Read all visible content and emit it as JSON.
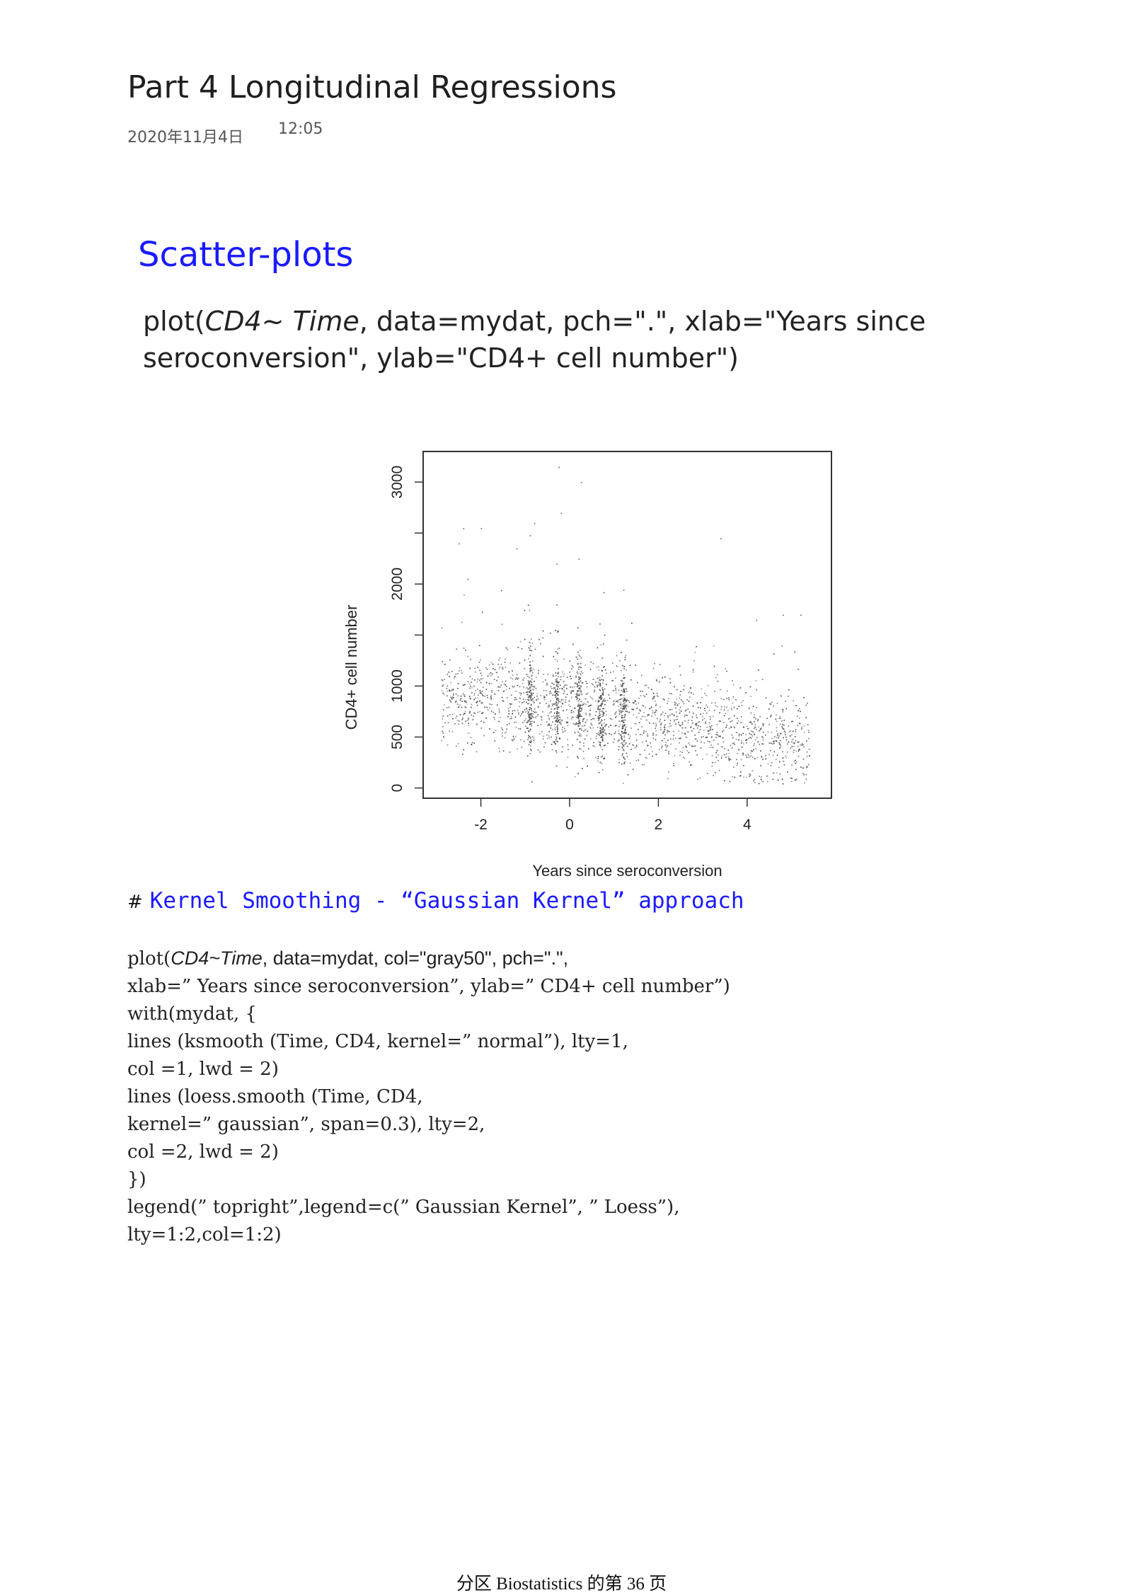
{
  "page": {
    "title": "Part 4 Longitudinal Regressions",
    "date": "2020年11月4日",
    "time": "12:05"
  },
  "slide": {
    "heading": "Scatter-plots",
    "code_line1_prefix": "plot(",
    "code_line1_var1": "CD4",
    "code_line1_tilde": "~ ",
    "code_line1_var2": "Time",
    "code_line1_rest": ", data=mydat, pch=\".\", xlab=\"Years since",
    "code_line2": "seroconversion\", ylab=\"CD4+ cell number\")"
  },
  "chart_data": {
    "type": "scatter",
    "xlabel": "Years since seroconversion",
    "ylabel": "CD4+ cell number",
    "xlim": [
      -3.3,
      5.9
    ],
    "ylim": [
      -100,
      3300
    ],
    "x_ticks": [
      "-2",
      "0",
      "2",
      "4"
    ],
    "y_ticks": [
      "0",
      "500",
      "1000",
      "2000",
      "3000"
    ],
    "y_tick_values": [
      0,
      500,
      1000,
      1500,
      2000,
      2500,
      3000
    ],
    "point_color": "#333333",
    "n_points": 2370,
    "visit_columns_x": [
      -0.9,
      -0.3,
      0.2,
      0.7,
      1.2
    ],
    "outliers": [
      {
        "x": -0.25,
        "y": 3150
      },
      {
        "x": 0.25,
        "y": 3000
      },
      {
        "x": -0.2,
        "y": 2700
      },
      {
        "x": -2.4,
        "y": 2550
      },
      {
        "x": -2.0,
        "y": 2550
      },
      {
        "x": -0.8,
        "y": 2600
      },
      {
        "x": -0.9,
        "y": 2480
      },
      {
        "x": 3.4,
        "y": 2450
      },
      {
        "x": -2.5,
        "y": 2400
      },
      {
        "x": -1.2,
        "y": 2350
      },
      {
        "x": 0.2,
        "y": 2250
      },
      {
        "x": -0.3,
        "y": 2200
      },
      {
        "x": -2.3,
        "y": 2050
      },
      {
        "x": -0.3,
        "y": 1800
      },
      {
        "x": 5.2,
        "y": 1700
      },
      {
        "x": 4.8,
        "y": 1700
      },
      {
        "x": 4.2,
        "y": 1650
      }
    ]
  },
  "notes": {
    "comment_hash": "#",
    "comment_text": "Kernel Smoothing - “Gaussian Kernel” approach",
    "code_l1_a": "plot(",
    "code_l1_b": "CD4~Time",
    "code_l1_c": ", data=mydat, col=\"gray50\", pch=\".\",",
    "code_l2": "xlab=” Years since seroconversion”, ylab=” CD4+ cell number”)",
    "code_l3": "with(mydat, {",
    "code_l4": "lines (ksmooth (Time, CD4, kernel=” normal”), lty=1,",
    "code_l5": "col =1, lwd = 2)",
    "code_l6": "lines (loess.smooth (Time, CD4,",
    "code_l7": "kernel=” gaussian”, span=0.3), lty=2,",
    "code_l8": "col =2, lwd = 2)",
    "code_l9": "})",
    "code_l10": "legend(” topright”,legend=c(” Gaussian Kernel”, ” Loess”),",
    "code_l11": "lty=1:2,col=1:2)"
  },
  "footer": {
    "text": "分区 Biostatistics 的第 36 页"
  }
}
